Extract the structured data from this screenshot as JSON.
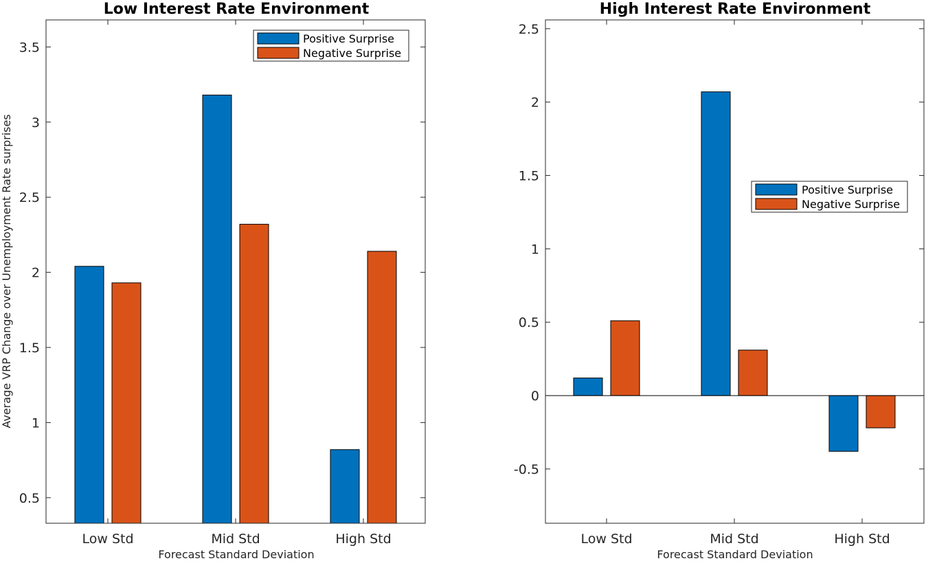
{
  "colors": {
    "positive": "#0072BD",
    "negative": "#D95319",
    "axis": "#262626"
  },
  "chart_data": [
    {
      "type": "bar",
      "title": "Low Interest Rate Environment",
      "xlabel": "Forecast Standard Deviation",
      "ylabel": "Average VRP Change over Unemployment Rate surprises",
      "categories": [
        "Low Std",
        "Mid Std",
        "High Std"
      ],
      "series": [
        {
          "name": "Positive Surprise",
          "values": [
            2.04,
            3.18,
            0.82
          ]
        },
        {
          "name": "Negative Surprise",
          "values": [
            1.93,
            2.32,
            2.14
          ]
        }
      ],
      "ylim": [
        0.33,
        3.68
      ],
      "yticks": [
        0.5,
        1,
        1.5,
        2,
        2.5,
        3,
        3.5
      ],
      "ytick_labels": [
        "0.5",
        "1",
        "1.5",
        "2",
        "2.5",
        "3",
        "3.5"
      ],
      "legend": "top-right",
      "grid": false
    },
    {
      "type": "bar",
      "title": "High Interest Rate Environment",
      "xlabel": "Forecast Standard Deviation",
      "ylabel": "",
      "categories": [
        "Low Std",
        "Mid Std",
        "High Std"
      ],
      "series": [
        {
          "name": "Positive Surprise",
          "values": [
            0.12,
            2.07,
            -0.38
          ]
        },
        {
          "name": "Negative Surprise",
          "values": [
            0.51,
            0.31,
            -0.22
          ]
        }
      ],
      "ylim": [
        -0.87,
        2.56
      ],
      "yticks": [
        -0.5,
        0,
        0.5,
        1,
        1.5,
        2,
        2.5
      ],
      "ytick_labels": [
        "-0.5",
        "0",
        "0.5",
        "1",
        "1.5",
        "2",
        "2.5"
      ],
      "legend": "right",
      "grid": false,
      "baseline": 0
    }
  ]
}
